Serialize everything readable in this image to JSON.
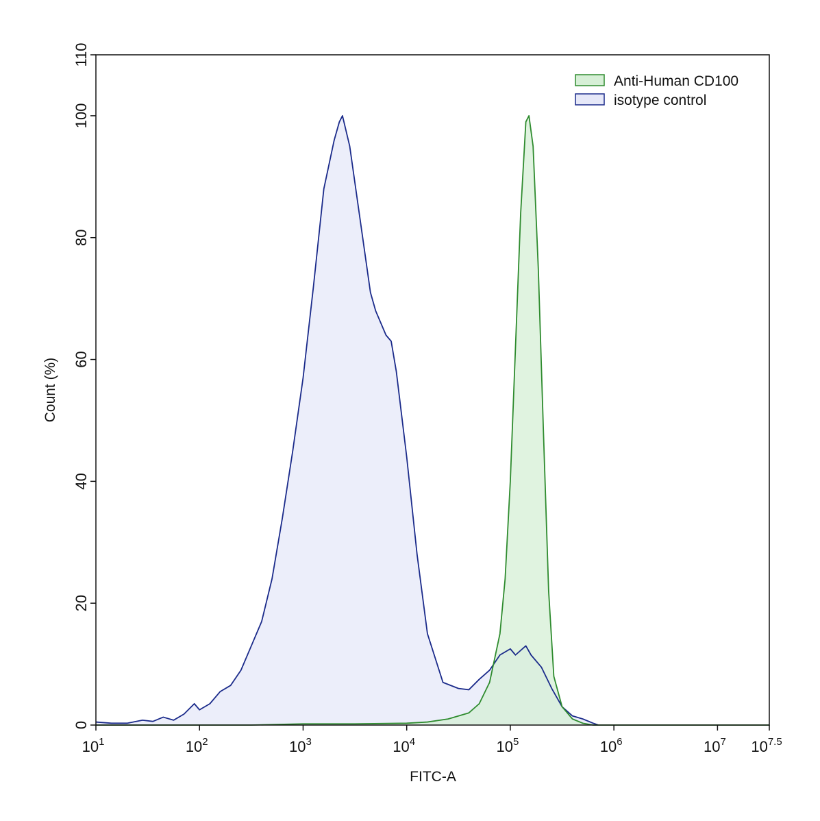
{
  "chart_data": {
    "type": "area",
    "title": "",
    "xlabel": "FITC-A",
    "ylabel": "Count  (%)",
    "x_scale": "log10",
    "xlim": [
      1,
      7.5
    ],
    "ylim": [
      0,
      110
    ],
    "x_ticks": [
      {
        "base": "10",
        "exp": "1",
        "value": 1
      },
      {
        "base": "10",
        "exp": "2",
        "value": 2
      },
      {
        "base": "10",
        "exp": "3",
        "value": 3
      },
      {
        "base": "10",
        "exp": "4",
        "value": 4
      },
      {
        "base": "10",
        "exp": "5",
        "value": 5
      },
      {
        "base": "10",
        "exp": "6",
        "value": 6
      },
      {
        "base": "10",
        "exp": "7",
        "value": 7
      },
      {
        "base": "10",
        "exp": "7.5",
        "value": 7.5
      }
    ],
    "y_ticks": [
      {
        "label": "0",
        "value": 0
      },
      {
        "label": "20",
        "value": 20
      },
      {
        "label": "40",
        "value": 40
      },
      {
        "label": "60",
        "value": 60
      },
      {
        "label": "80",
        "value": 80
      },
      {
        "label": "100",
        "value": 100
      },
      {
        "label": "110",
        "value": 110
      }
    ],
    "grid": false,
    "legend_position": "top-right",
    "series": [
      {
        "name": "isotype control",
        "stroke": "#1a2a8a",
        "fill": "#e6e8f8",
        "points": [
          [
            1.0,
            0.5
          ],
          [
            1.15,
            0.3
          ],
          [
            1.3,
            0.3
          ],
          [
            1.45,
            0.8
          ],
          [
            1.55,
            0.6
          ],
          [
            1.65,
            1.3
          ],
          [
            1.75,
            0.8
          ],
          [
            1.85,
            1.8
          ],
          [
            1.95,
            3.5
          ],
          [
            2.0,
            2.5
          ],
          [
            2.1,
            3.5
          ],
          [
            2.2,
            5.5
          ],
          [
            2.3,
            6.5
          ],
          [
            2.4,
            9.0
          ],
          [
            2.5,
            13.0
          ],
          [
            2.6,
            17.0
          ],
          [
            2.7,
            24.0
          ],
          [
            2.8,
            34.0
          ],
          [
            2.9,
            45.0
          ],
          [
            3.0,
            57.0
          ],
          [
            3.1,
            72.0
          ],
          [
            3.2,
            88.0
          ],
          [
            3.3,
            96.0
          ],
          [
            3.35,
            99.0
          ],
          [
            3.38,
            100.0
          ],
          [
            3.45,
            95.0
          ],
          [
            3.55,
            83.0
          ],
          [
            3.65,
            71.0
          ],
          [
            3.7,
            68.0
          ],
          [
            3.8,
            64.0
          ],
          [
            3.85,
            63.0
          ],
          [
            3.9,
            58.0
          ],
          [
            4.0,
            44.0
          ],
          [
            4.1,
            28.0
          ],
          [
            4.2,
            15.0
          ],
          [
            4.35,
            7.0
          ],
          [
            4.5,
            6.0
          ],
          [
            4.6,
            5.8
          ],
          [
            4.7,
            7.5
          ],
          [
            4.8,
            9.0
          ],
          [
            4.9,
            11.5
          ],
          [
            5.0,
            12.5
          ],
          [
            5.05,
            11.5
          ],
          [
            5.15,
            13.0
          ],
          [
            5.2,
            11.5
          ],
          [
            5.3,
            9.5
          ],
          [
            5.4,
            6.0
          ],
          [
            5.5,
            3.0
          ],
          [
            5.6,
            1.5
          ],
          [
            5.7,
            1.0
          ],
          [
            5.8,
            0.3
          ],
          [
            5.85,
            0.0
          ]
        ]
      },
      {
        "name": "Anti-Human CD100",
        "stroke": "#2e8b2e",
        "fill": "#d6efd6",
        "points": [
          [
            1.0,
            0.0
          ],
          [
            2.5,
            0.0
          ],
          [
            3.0,
            0.2
          ],
          [
            3.5,
            0.2
          ],
          [
            4.0,
            0.3
          ],
          [
            4.2,
            0.5
          ],
          [
            4.4,
            1.0
          ],
          [
            4.6,
            2.0
          ],
          [
            4.7,
            3.5
          ],
          [
            4.8,
            7.0
          ],
          [
            4.9,
            15.0
          ],
          [
            4.95,
            24.0
          ],
          [
            5.0,
            40.0
          ],
          [
            5.05,
            62.0
          ],
          [
            5.1,
            84.0
          ],
          [
            5.15,
            99.0
          ],
          [
            5.18,
            100.0
          ],
          [
            5.22,
            95.0
          ],
          [
            5.27,
            75.0
          ],
          [
            5.32,
            48.0
          ],
          [
            5.37,
            22.0
          ],
          [
            5.42,
            8.0
          ],
          [
            5.5,
            3.0
          ],
          [
            5.6,
            1.0
          ],
          [
            5.7,
            0.3
          ],
          [
            5.8,
            0.0
          ],
          [
            7.5,
            0.0
          ]
        ]
      }
    ]
  }
}
